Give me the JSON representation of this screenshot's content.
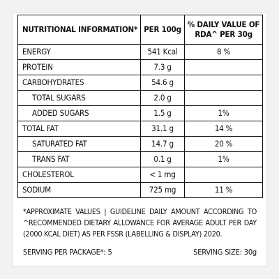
{
  "header": {
    "name": "NUTRITIONAL INFORMATION*",
    "per": "PER 100g",
    "dv_line1": "% DAILY VALUE OF",
    "dv_line2": "RDA^ PER 30g"
  },
  "rows": [
    {
      "name": "ENERGY",
      "value": "541 Kcal",
      "dv": "8 %",
      "indent": false
    },
    {
      "name": "PROTEIN",
      "value": "7.3 g",
      "dv": "",
      "indent": false
    },
    {
      "name": "CARBOHYDRATES",
      "value": "54.6 g",
      "dv": "",
      "indent": false
    },
    {
      "name": "TOTAL SUGARS",
      "value": "2.0 g",
      "dv": "",
      "indent": true
    },
    {
      "name": "ADDED SUGARS",
      "value": "1.5 g",
      "dv": "1%",
      "indent": true
    },
    {
      "name": "TOTAL FAT",
      "value": "31.1 g",
      "dv": "14 %",
      "indent": false
    },
    {
      "name": "SATURATED FAT",
      "value": "14.7 g",
      "dv": "20 %",
      "indent": true
    },
    {
      "name": "TRANS FAT",
      "value": "0.1 g",
      "dv": "1%",
      "indent": true
    },
    {
      "name": "CHOLESTEROL",
      "value": "< 1 mg",
      "dv": "",
      "indent": false
    },
    {
      "name": "SODIUM",
      "value": "725 mg",
      "dv": "11 %",
      "indent": false
    }
  ],
  "footnote": "*APPROXIMATE VALUES | GUIDELINE DAILY AMOUNT ACCORDING TO ^RECOMMENDED DIETARY ALLOWANCE FOR AVERAGE ADULT PER DAY (2000 KCAL DIET) AS PER FSSR (LABELLING & DISPLAY) 2020.",
  "serving": {
    "per_package": "SERVING PER PACKAGE*: 5",
    "size": "SERVING SIZE: 30g"
  }
}
